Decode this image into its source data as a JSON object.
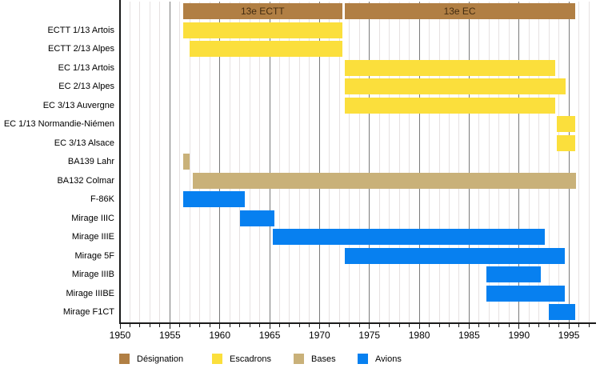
{
  "colors": {
    "designation": "#b17f44",
    "designation_text": "#432c10",
    "escadrons": "#fbdf3c",
    "bases": "#c9b179",
    "avions": "#0780f0",
    "grid_minor": "#e6e1e1",
    "grid_major": "#7a7a7a",
    "axis": "#1a1a1a"
  },
  "chart_data": {
    "type": "bar",
    "subtype": "gantt-timeline",
    "title": "",
    "xlabel": "",
    "ylabel": "",
    "x_axis": {
      "min": 1950,
      "max": 1997.7,
      "major_tick_labels": [
        "1950",
        "1955",
        "1960",
        "1965",
        "1970",
        "1975",
        "1980",
        "1985",
        "1990",
        "1995"
      ],
      "major_tick_years": [
        1950,
        1955,
        1960,
        1965,
        1970,
        1975,
        1980,
        1985,
        1990,
        1995
      ],
      "minor_tick_step": 1,
      "grid": "vertical-only"
    },
    "designation_bars": [
      {
        "label": "13e ECTT",
        "start": 1956.3,
        "end": 1972.3
      },
      {
        "label": "13e EC",
        "start": 1972.5,
        "end": 1995.6
      }
    ],
    "rows": [
      {
        "label": "ECTT 1/13 Artois",
        "category": "escadrons",
        "start": 1956.3,
        "end": 1972.3
      },
      {
        "label": "ECTT 2/13 Alpes",
        "category": "escadrons",
        "start": 1957.0,
        "end": 1972.3
      },
      {
        "label": "EC 1/13 Artois",
        "category": "escadrons",
        "start": 1972.5,
        "end": 1993.6
      },
      {
        "label": "EC 2/13 Alpes",
        "category": "escadrons",
        "start": 1972.5,
        "end": 1994.7
      },
      {
        "label": "EC 3/13 Auvergne",
        "category": "escadrons",
        "start": 1972.5,
        "end": 1993.6
      },
      {
        "label": "EC 1/13 Normandie-Niémen",
        "category": "escadrons",
        "start": 1993.8,
        "end": 1995.6
      },
      {
        "label": "EC 3/13 Alsace",
        "category": "escadrons",
        "start": 1993.8,
        "end": 1995.6
      },
      {
        "label": "BA139 Lahr",
        "category": "bases",
        "start": 1956.3,
        "end": 1957.0
      },
      {
        "label": "BA132 Colmar",
        "category": "bases",
        "start": 1957.3,
        "end": 1995.7
      },
      {
        "label": "F-86K",
        "category": "avions",
        "start": 1956.3,
        "end": 1962.5
      },
      {
        "label": "Mirage IIIC",
        "category": "avions",
        "start": 1962.0,
        "end": 1965.5
      },
      {
        "label": "Mirage IIIE",
        "category": "avions",
        "start": 1965.3,
        "end": 1992.6
      },
      {
        "label": "Mirage 5F",
        "category": "avions",
        "start": 1972.5,
        "end": 1994.6
      },
      {
        "label": "Mirage IIIB",
        "category": "avions",
        "start": 1986.7,
        "end": 1992.2
      },
      {
        "label": "Mirage IIIBE",
        "category": "avions",
        "start": 1986.7,
        "end": 1994.6
      },
      {
        "label": "Mirage F1CT",
        "category": "avions",
        "start": 1993.0,
        "end": 1995.6
      }
    ],
    "legend": [
      {
        "label": "Désignation",
        "color_key": "designation"
      },
      {
        "label": "Escadrons",
        "color_key": "escadrons"
      },
      {
        "label": "Bases",
        "color_key": "bases"
      },
      {
        "label": "Avions",
        "color_key": "avions"
      }
    ],
    "legend_position": "bottom"
  }
}
